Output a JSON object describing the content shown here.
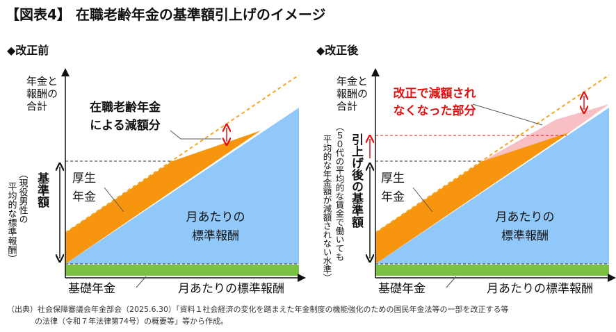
{
  "header": {
    "title": "【図表4】 在職老齢年金の基準額引上げのイメージ"
  },
  "panels": [
    {
      "heading": "◆改正前",
      "y_axis_label": [
        "年金と",
        "報酬の",
        "合計"
      ],
      "x_axis_label": "月あたりの標準報酬",
      "base_pension": "基礎年金",
      "employee_pension": [
        "厚生",
        "年金"
      ],
      "standard_remuneration": [
        "月あたりの",
        "標準報酬"
      ],
      "callout": [
        "在職老齢年金",
        "による減額分"
      ],
      "threshold_label": "基準額",
      "threshold_note": [
        "（現役男性の",
        "平均的な標準報酬）"
      ]
    },
    {
      "heading": "◆改正後",
      "y_axis_label": [
        "年金と",
        "報酬の",
        "合計"
      ],
      "x_axis_label": "月あたりの標準報酬",
      "base_pension": "基礎年金",
      "employee_pension": [
        "厚生",
        "年金"
      ],
      "standard_remuneration": [
        "月あたりの",
        "標準報酬"
      ],
      "callout": [
        "改正で減額され",
        "なくなった部分"
      ],
      "threshold_label": "引上げ後の基準額",
      "threshold_note": [
        "（５０代の平均的な賃金で働いても",
        "平均的な年金額が減額されない水準）"
      ]
    }
  ],
  "footnote": [
    "（出典）社会保障審議会年金部会（2025.6.30）「資料１社会経済の変化を踏まえた年金制度の機能強化のための国民年金法等の一部を改正する等",
    "の法律（令和７年法律第74号）の概要等」等から作成。"
  ]
}
